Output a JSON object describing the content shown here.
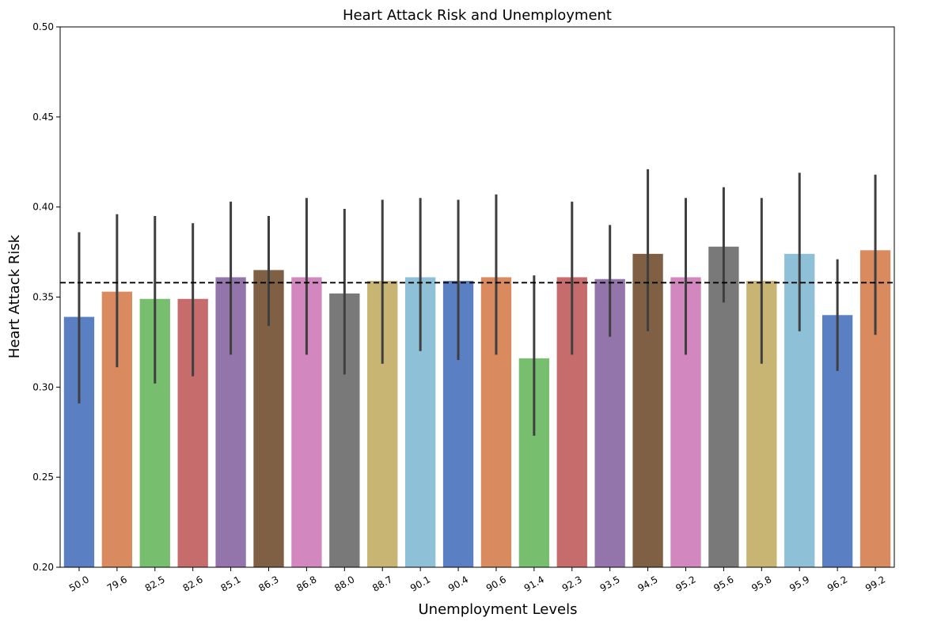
{
  "chart_data": {
    "type": "bar",
    "title": "Heart Attack Risk and Unemployment",
    "xlabel": "Unemployment Levels",
    "ylabel": "Heart Attack Risk",
    "ylim": [
      0.2,
      0.5
    ],
    "yticks": [
      "0.20",
      "0.25",
      "0.30",
      "0.35",
      "0.40",
      "0.45",
      "0.50"
    ],
    "categories": [
      "50.0",
      "79.6",
      "82.5",
      "82.6",
      "85.1",
      "86.3",
      "86.8",
      "88.0",
      "88.7",
      "90.1",
      "90.4",
      "90.6",
      "91.4",
      "92.3",
      "93.5",
      "94.5",
      "95.2",
      "95.6",
      "95.8",
      "95.9",
      "96.2",
      "99.2"
    ],
    "values": [
      0.339,
      0.353,
      0.349,
      0.349,
      0.361,
      0.365,
      0.361,
      0.352,
      0.359,
      0.361,
      0.359,
      0.361,
      0.316,
      0.361,
      0.36,
      0.374,
      0.361,
      0.378,
      0.359,
      0.374,
      0.34,
      0.376
    ],
    "error_low": [
      0.291,
      0.311,
      0.302,
      0.306,
      0.318,
      0.334,
      0.318,
      0.307,
      0.313,
      0.32,
      0.315,
      0.318,
      0.273,
      0.318,
      0.328,
      0.331,
      0.318,
      0.347,
      0.313,
      0.331,
      0.309,
      0.329
    ],
    "error_high": [
      0.386,
      0.396,
      0.395,
      0.391,
      0.403,
      0.395,
      0.405,
      0.399,
      0.404,
      0.405,
      0.404,
      0.407,
      0.362,
      0.403,
      0.39,
      0.421,
      0.405,
      0.411,
      0.405,
      0.419,
      0.371,
      0.418
    ],
    "colors": [
      "#5b7fc3",
      "#d98b5f",
      "#77bf6f",
      "#c66c6c",
      "#9374ab",
      "#806044",
      "#d288be",
      "#797979",
      "#c8b473",
      "#8ec1d8",
      "#5b7fc3",
      "#d98b5f",
      "#77bf6f",
      "#c66c6c",
      "#9374ab",
      "#806044",
      "#d288be",
      "#797979",
      "#c8b473",
      "#8ec1d8",
      "#5b7fc3",
      "#d98b5f"
    ],
    "reference_line": 0.358,
    "grid": false,
    "xtick_rotation": "30 degrees"
  }
}
